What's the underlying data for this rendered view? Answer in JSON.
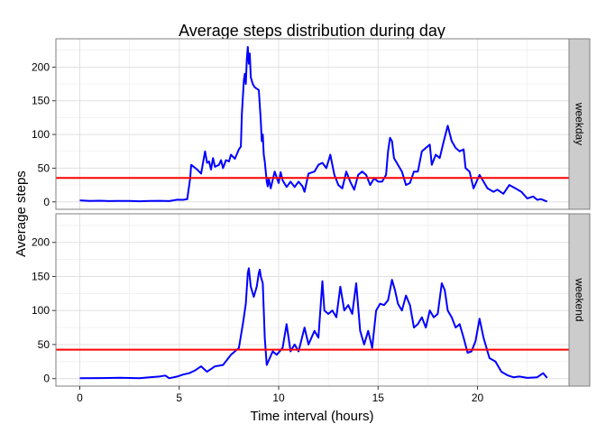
{
  "chart_data": {
    "type": "line",
    "title": "Average steps distribution during day",
    "xlabel": "Time interval (hours)",
    "ylabel": "Average steps",
    "xlim": [
      -1.2,
      24.6
    ],
    "ylim": [
      -11,
      242
    ],
    "x_ticks": [
      0,
      5,
      10,
      15,
      20
    ],
    "x_tick_labels": [
      "0",
      "5",
      "10",
      "15",
      "20"
    ],
    "y_ticks": [
      0,
      50,
      100,
      150,
      200
    ],
    "y_tick_labels": [
      "0",
      "50",
      "100",
      "150",
      "200"
    ],
    "grid": true,
    "line_color": "#0000ff",
    "mean_line_color": "#ff0000",
    "strip_color": "#cccccc",
    "panel_border_color": "#7f7f7f",
    "grid_color": "#ebebeb",
    "panels": [
      {
        "label": "weekday",
        "mean": 35.6,
        "points": [
          [
            0,
            2.3
          ],
          [
            0.5,
            1.5
          ],
          [
            1,
            1.7
          ],
          [
            1.5,
            1.2
          ],
          [
            2,
            1.5
          ],
          [
            2.5,
            1.3
          ],
          [
            3,
            0.9
          ],
          [
            3.5,
            1.4
          ],
          [
            4,
            1.6
          ],
          [
            4.5,
            1.2
          ],
          [
            4.9,
            3.2
          ],
          [
            5.2,
            3
          ],
          [
            5.4,
            4
          ],
          [
            5.55,
            35
          ],
          [
            5.6,
            55
          ],
          [
            5.9,
            48
          ],
          [
            6.1,
            42
          ],
          [
            6.3,
            75
          ],
          [
            6.4,
            58
          ],
          [
            6.5,
            60
          ],
          [
            6.6,
            48
          ],
          [
            6.7,
            65
          ],
          [
            6.8,
            52
          ],
          [
            7,
            55
          ],
          [
            7.1,
            62
          ],
          [
            7.2,
            50
          ],
          [
            7.35,
            62
          ],
          [
            7.5,
            60
          ],
          [
            7.6,
            70
          ],
          [
            7.8,
            64
          ],
          [
            8,
            78
          ],
          [
            8.1,
            82
          ],
          [
            8.15,
            130
          ],
          [
            8.25,
            180
          ],
          [
            8.3,
            190
          ],
          [
            8.35,
            175
          ],
          [
            8.4,
            212
          ],
          [
            8.45,
            230
          ],
          [
            8.5,
            205
          ],
          [
            8.55,
            220
          ],
          [
            8.6,
            185
          ],
          [
            8.7,
            175
          ],
          [
            8.8,
            170
          ],
          [
            9,
            166
          ],
          [
            9.1,
            120
          ],
          [
            9.15,
            90
          ],
          [
            9.2,
            100
          ],
          [
            9.25,
            70
          ],
          [
            9.3,
            60
          ],
          [
            9.35,
            45
          ],
          [
            9.4,
            30
          ],
          [
            9.45,
            23
          ],
          [
            9.5,
            35
          ],
          [
            9.6,
            20
          ],
          [
            9.8,
            45
          ],
          [
            10,
            28
          ],
          [
            10.1,
            44
          ],
          [
            10.2,
            32
          ],
          [
            10.4,
            22
          ],
          [
            10.6,
            30
          ],
          [
            10.8,
            22
          ],
          [
            11,
            30
          ],
          [
            11.2,
            23
          ],
          [
            11.3,
            15
          ],
          [
            11.5,
            42
          ],
          [
            11.8,
            45
          ],
          [
            12,
            55
          ],
          [
            12.2,
            58
          ],
          [
            12.4,
            50
          ],
          [
            12.6,
            70
          ],
          [
            12.8,
            40
          ],
          [
            13,
            25
          ],
          [
            13.2,
            20
          ],
          [
            13.4,
            45
          ],
          [
            13.6,
            30
          ],
          [
            13.8,
            18
          ],
          [
            14,
            40
          ],
          [
            14.2,
            45
          ],
          [
            14.4,
            40
          ],
          [
            14.6,
            25
          ],
          [
            14.8,
            35
          ],
          [
            15,
            30
          ],
          [
            15.2,
            30
          ],
          [
            15.4,
            40
          ],
          [
            15.5,
            75
          ],
          [
            15.6,
            95
          ],
          [
            15.7,
            90
          ],
          [
            15.8,
            65
          ],
          [
            16,
            55
          ],
          [
            16.2,
            45
          ],
          [
            16.4,
            25
          ],
          [
            16.6,
            28
          ],
          [
            16.8,
            45
          ],
          [
            17,
            45
          ],
          [
            17.2,
            75
          ],
          [
            17.4,
            80
          ],
          [
            17.6,
            85
          ],
          [
            17.7,
            55
          ],
          [
            17.9,
            70
          ],
          [
            18.1,
            65
          ],
          [
            18.3,
            90
          ],
          [
            18.5,
            113
          ],
          [
            18.7,
            90
          ],
          [
            18.9,
            80
          ],
          [
            19.1,
            75
          ],
          [
            19.3,
            78
          ],
          [
            19.4,
            50
          ],
          [
            19.6,
            45
          ],
          [
            19.8,
            20
          ],
          [
            20.1,
            40
          ],
          [
            20.5,
            20
          ],
          [
            20.8,
            15
          ],
          [
            21,
            18
          ],
          [
            21.3,
            12
          ],
          [
            21.6,
            25
          ],
          [
            21.9,
            20
          ],
          [
            22.2,
            15
          ],
          [
            22.5,
            5
          ],
          [
            22.8,
            8
          ],
          [
            23,
            3
          ],
          [
            23.2,
            4
          ],
          [
            23.5,
            0.5
          ]
        ]
      },
      {
        "label": "weekend",
        "mean": 42.4,
        "points": [
          [
            0,
            0.5
          ],
          [
            1,
            0.8
          ],
          [
            2,
            1.2
          ],
          [
            3,
            0.6
          ],
          [
            3.5,
            2
          ],
          [
            4,
            3
          ],
          [
            4.3,
            4.5
          ],
          [
            4.5,
            0.5
          ],
          [
            4.9,
            3
          ],
          [
            5.2,
            6
          ],
          [
            5.5,
            8
          ],
          [
            5.8,
            12
          ],
          [
            6.1,
            18
          ],
          [
            6.4,
            10
          ],
          [
            6.8,
            18
          ],
          [
            7.2,
            20
          ],
          [
            7.6,
            35
          ],
          [
            8,
            45
          ],
          [
            8.2,
            80
          ],
          [
            8.35,
            110
          ],
          [
            8.45,
            155
          ],
          [
            8.5,
            162
          ],
          [
            8.6,
            135
          ],
          [
            8.75,
            120
          ],
          [
            8.9,
            135
          ],
          [
            9,
            155
          ],
          [
            9.05,
            160
          ],
          [
            9.1,
            150
          ],
          [
            9.2,
            140
          ],
          [
            9.3,
            60
          ],
          [
            9.4,
            20
          ],
          [
            9.55,
            30
          ],
          [
            9.7,
            40
          ],
          [
            9.9,
            35
          ],
          [
            10.2,
            45
          ],
          [
            10.4,
            80
          ],
          [
            10.6,
            40
          ],
          [
            10.8,
            50
          ],
          [
            11,
            40
          ],
          [
            11.3,
            75
          ],
          [
            11.5,
            50
          ],
          [
            11.8,
            70
          ],
          [
            12,
            60
          ],
          [
            12.2,
            143
          ],
          [
            12.3,
            100
          ],
          [
            12.5,
            95
          ],
          [
            12.7,
            100
          ],
          [
            12.9,
            90
          ],
          [
            13.1,
            135
          ],
          [
            13.3,
            100
          ],
          [
            13.5,
            108
          ],
          [
            13.7,
            95
          ],
          [
            13.9,
            140
          ],
          [
            14.1,
            70
          ],
          [
            14.3,
            50
          ],
          [
            14.5,
            70
          ],
          [
            14.7,
            45
          ],
          [
            14.9,
            100
          ],
          [
            15.1,
            110
          ],
          [
            15.3,
            108
          ],
          [
            15.5,
            115
          ],
          [
            15.7,
            145
          ],
          [
            15.85,
            130
          ],
          [
            16,
            110
          ],
          [
            16.2,
            100
          ],
          [
            16.4,
            122
          ],
          [
            16.6,
            108
          ],
          [
            16.8,
            75
          ],
          [
            17,
            80
          ],
          [
            17.2,
            90
          ],
          [
            17.4,
            75
          ],
          [
            17.6,
            100
          ],
          [
            17.8,
            90
          ],
          [
            18,
            95
          ],
          [
            18.2,
            140
          ],
          [
            18.35,
            130
          ],
          [
            18.5,
            100
          ],
          [
            18.7,
            90
          ],
          [
            18.9,
            75
          ],
          [
            19.1,
            80
          ],
          [
            19.3,
            60
          ],
          [
            19.5,
            38
          ],
          [
            19.7,
            40
          ],
          [
            19.9,
            55
          ],
          [
            20.1,
            88
          ],
          [
            20.3,
            60
          ],
          [
            20.6,
            30
          ],
          [
            20.9,
            25
          ],
          [
            21.2,
            10
          ],
          [
            21.5,
            5
          ],
          [
            21.8,
            2
          ],
          [
            22.1,
            3
          ],
          [
            22.5,
            1
          ],
          [
            23,
            2
          ],
          [
            23.3,
            8
          ],
          [
            23.5,
            1
          ]
        ]
      }
    ]
  }
}
